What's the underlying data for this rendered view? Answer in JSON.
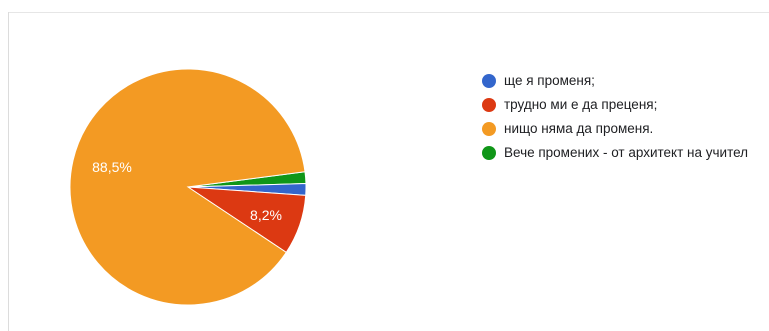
{
  "chart_data": {
    "type": "pie",
    "categories": [
      "ще я променя;",
      "трудно ми е да преценя;",
      "нищо няма да променя.",
      "Вече промених - от архитект на учител"
    ],
    "values": [
      1.6,
      8.2,
      88.5,
      1.6
    ],
    "slice_labels": [
      "",
      "8,2%",
      "88,5%",
      ""
    ],
    "colors": [
      "#3366cc",
      "#dc3912",
      "#f39a23",
      "#109618"
    ],
    "legend_position": "right"
  }
}
